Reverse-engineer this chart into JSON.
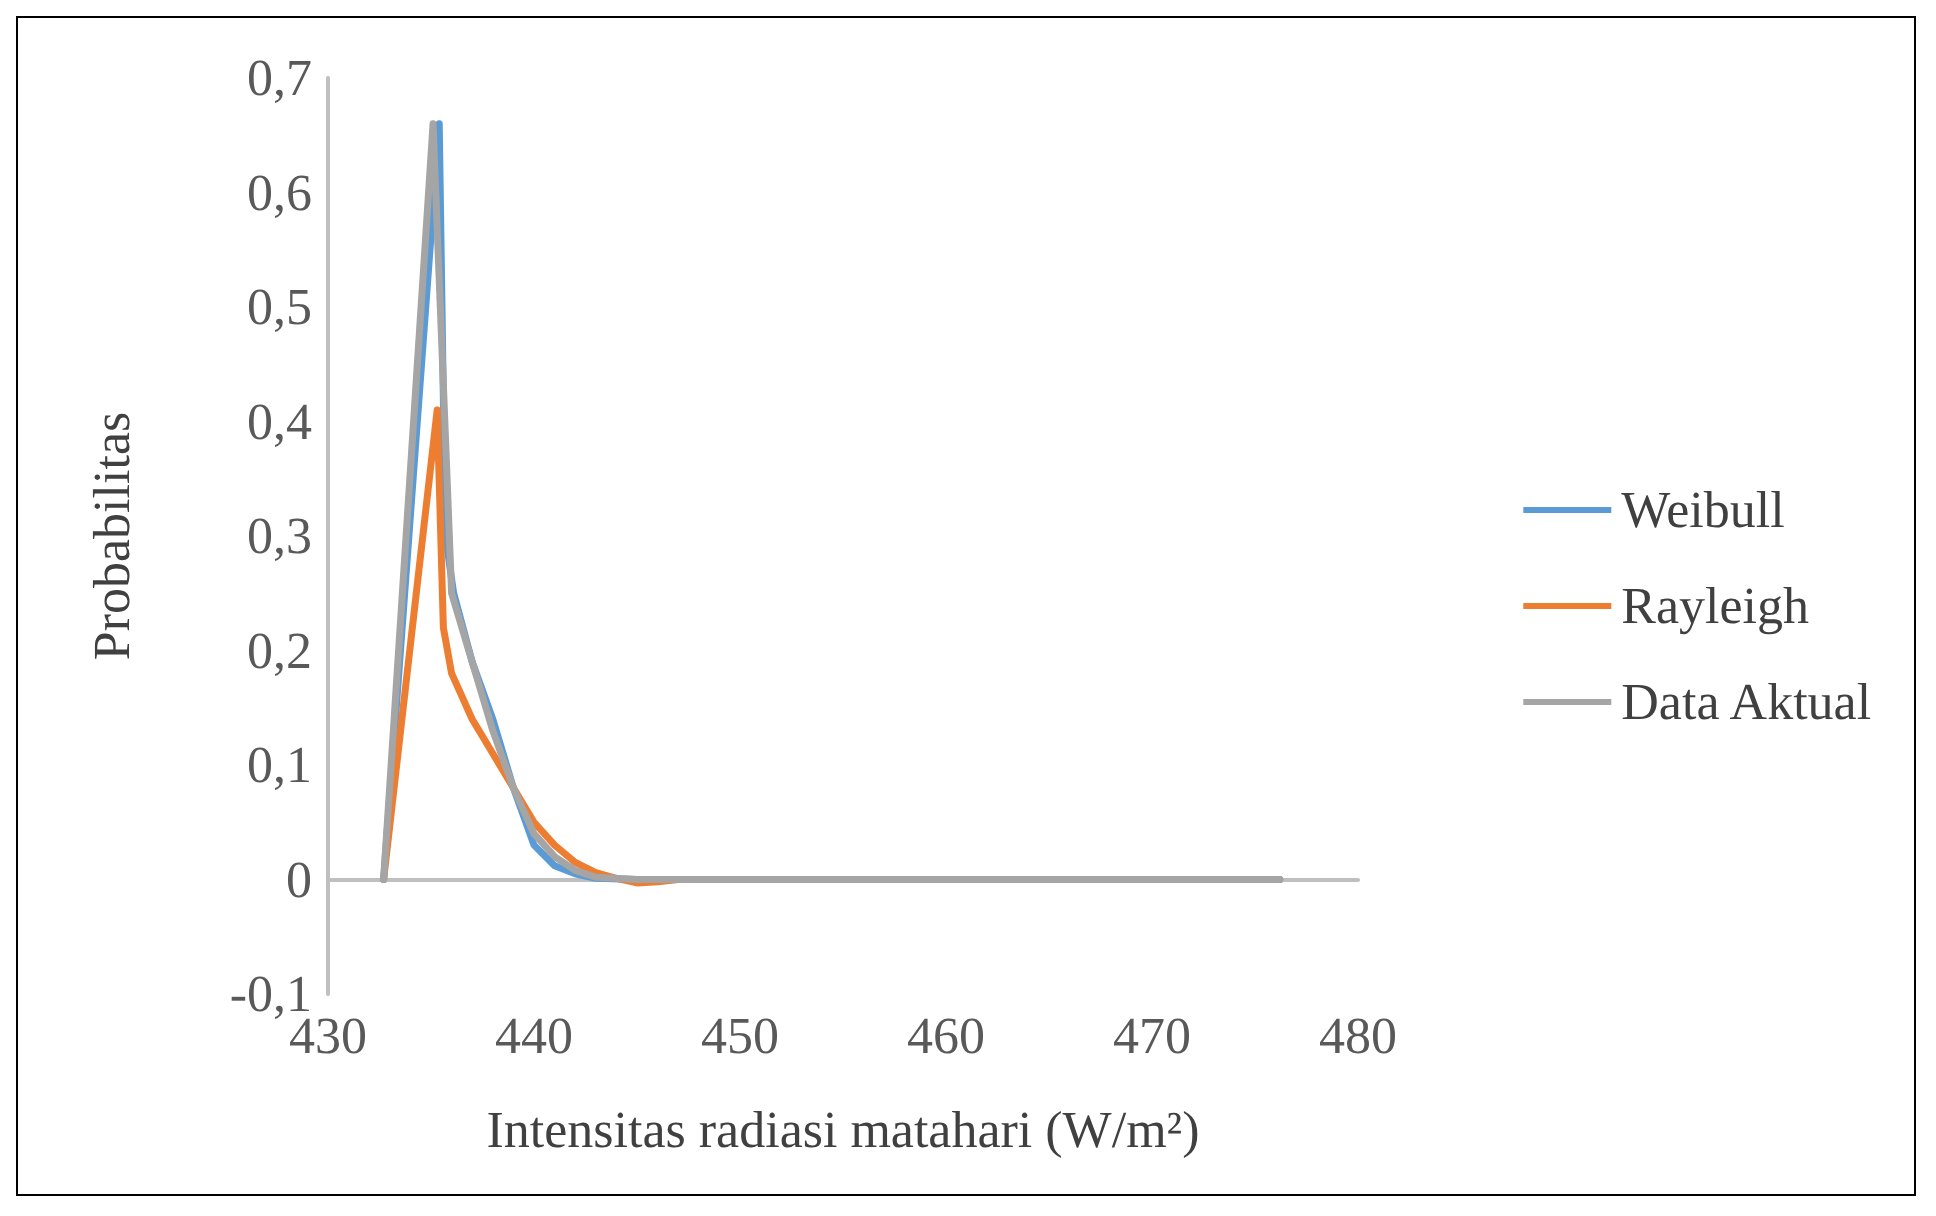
{
  "chart_data": {
    "type": "line",
    "xlabel": "Intensitas radiasi matahari (W/m²)",
    "ylabel": "Probabilitas",
    "xlim": [
      430,
      480
    ],
    "xticks": [
      430,
      440,
      450,
      460,
      470,
      480
    ],
    "ylim": [
      -0.1,
      0.7
    ],
    "yticks": [
      {
        "value": -0.1,
        "label": "-0,1"
      },
      {
        "value": 0,
        "label": "0"
      },
      {
        "value": 0.1,
        "label": "0,1"
      },
      {
        "value": 0.2,
        "label": "0,2"
      },
      {
        "value": 0.3,
        "label": "0,3"
      },
      {
        "value": 0.4,
        "label": "0,4"
      },
      {
        "value": 0.5,
        "label": "0,5"
      },
      {
        "value": 0.6,
        "label": "0,6"
      },
      {
        "value": 0.7,
        "label": "0,7"
      }
    ],
    "grid": false,
    "legend": "right",
    "marker": "none",
    "line_style": "solid",
    "series": [
      {
        "name": "Weibull",
        "color": "#5b9bd5",
        "x": [
          432.7,
          435.4,
          435.7,
          436.1,
          437,
          438,
          439,
          440,
          441,
          442,
          443,
          445,
          447,
          476.2
        ],
        "values": [
          0,
          0.66,
          0.3,
          0.25,
          0.19,
          0.14,
          0.08,
          0.03,
          0.012,
          0.005,
          0.001,
          0,
          0,
          0
        ]
      },
      {
        "name": "Rayleigh",
        "color": "#ed7d31",
        "x": [
          432.7,
          435.3,
          435.6,
          436,
          437,
          438,
          439,
          440,
          441,
          442,
          443,
          444,
          445,
          446,
          447,
          476.2
        ],
        "values": [
          0,
          0.41,
          0.22,
          0.18,
          0.14,
          0.11,
          0.08,
          0.05,
          0.03,
          0.015,
          0.006,
          0.001,
          -0.003,
          -0.002,
          0,
          0
        ]
      },
      {
        "name": "Data Aktual",
        "color": "#a5a5a5",
        "x": [
          432.7,
          435.1,
          436,
          437,
          438,
          439,
          440,
          441,
          442,
          443,
          445,
          447,
          476.2
        ],
        "values": [
          0,
          0.66,
          0.25,
          0.19,
          0.13,
          0.08,
          0.04,
          0.02,
          0.008,
          0.002,
          0,
          0,
          0
        ]
      }
    ]
  }
}
